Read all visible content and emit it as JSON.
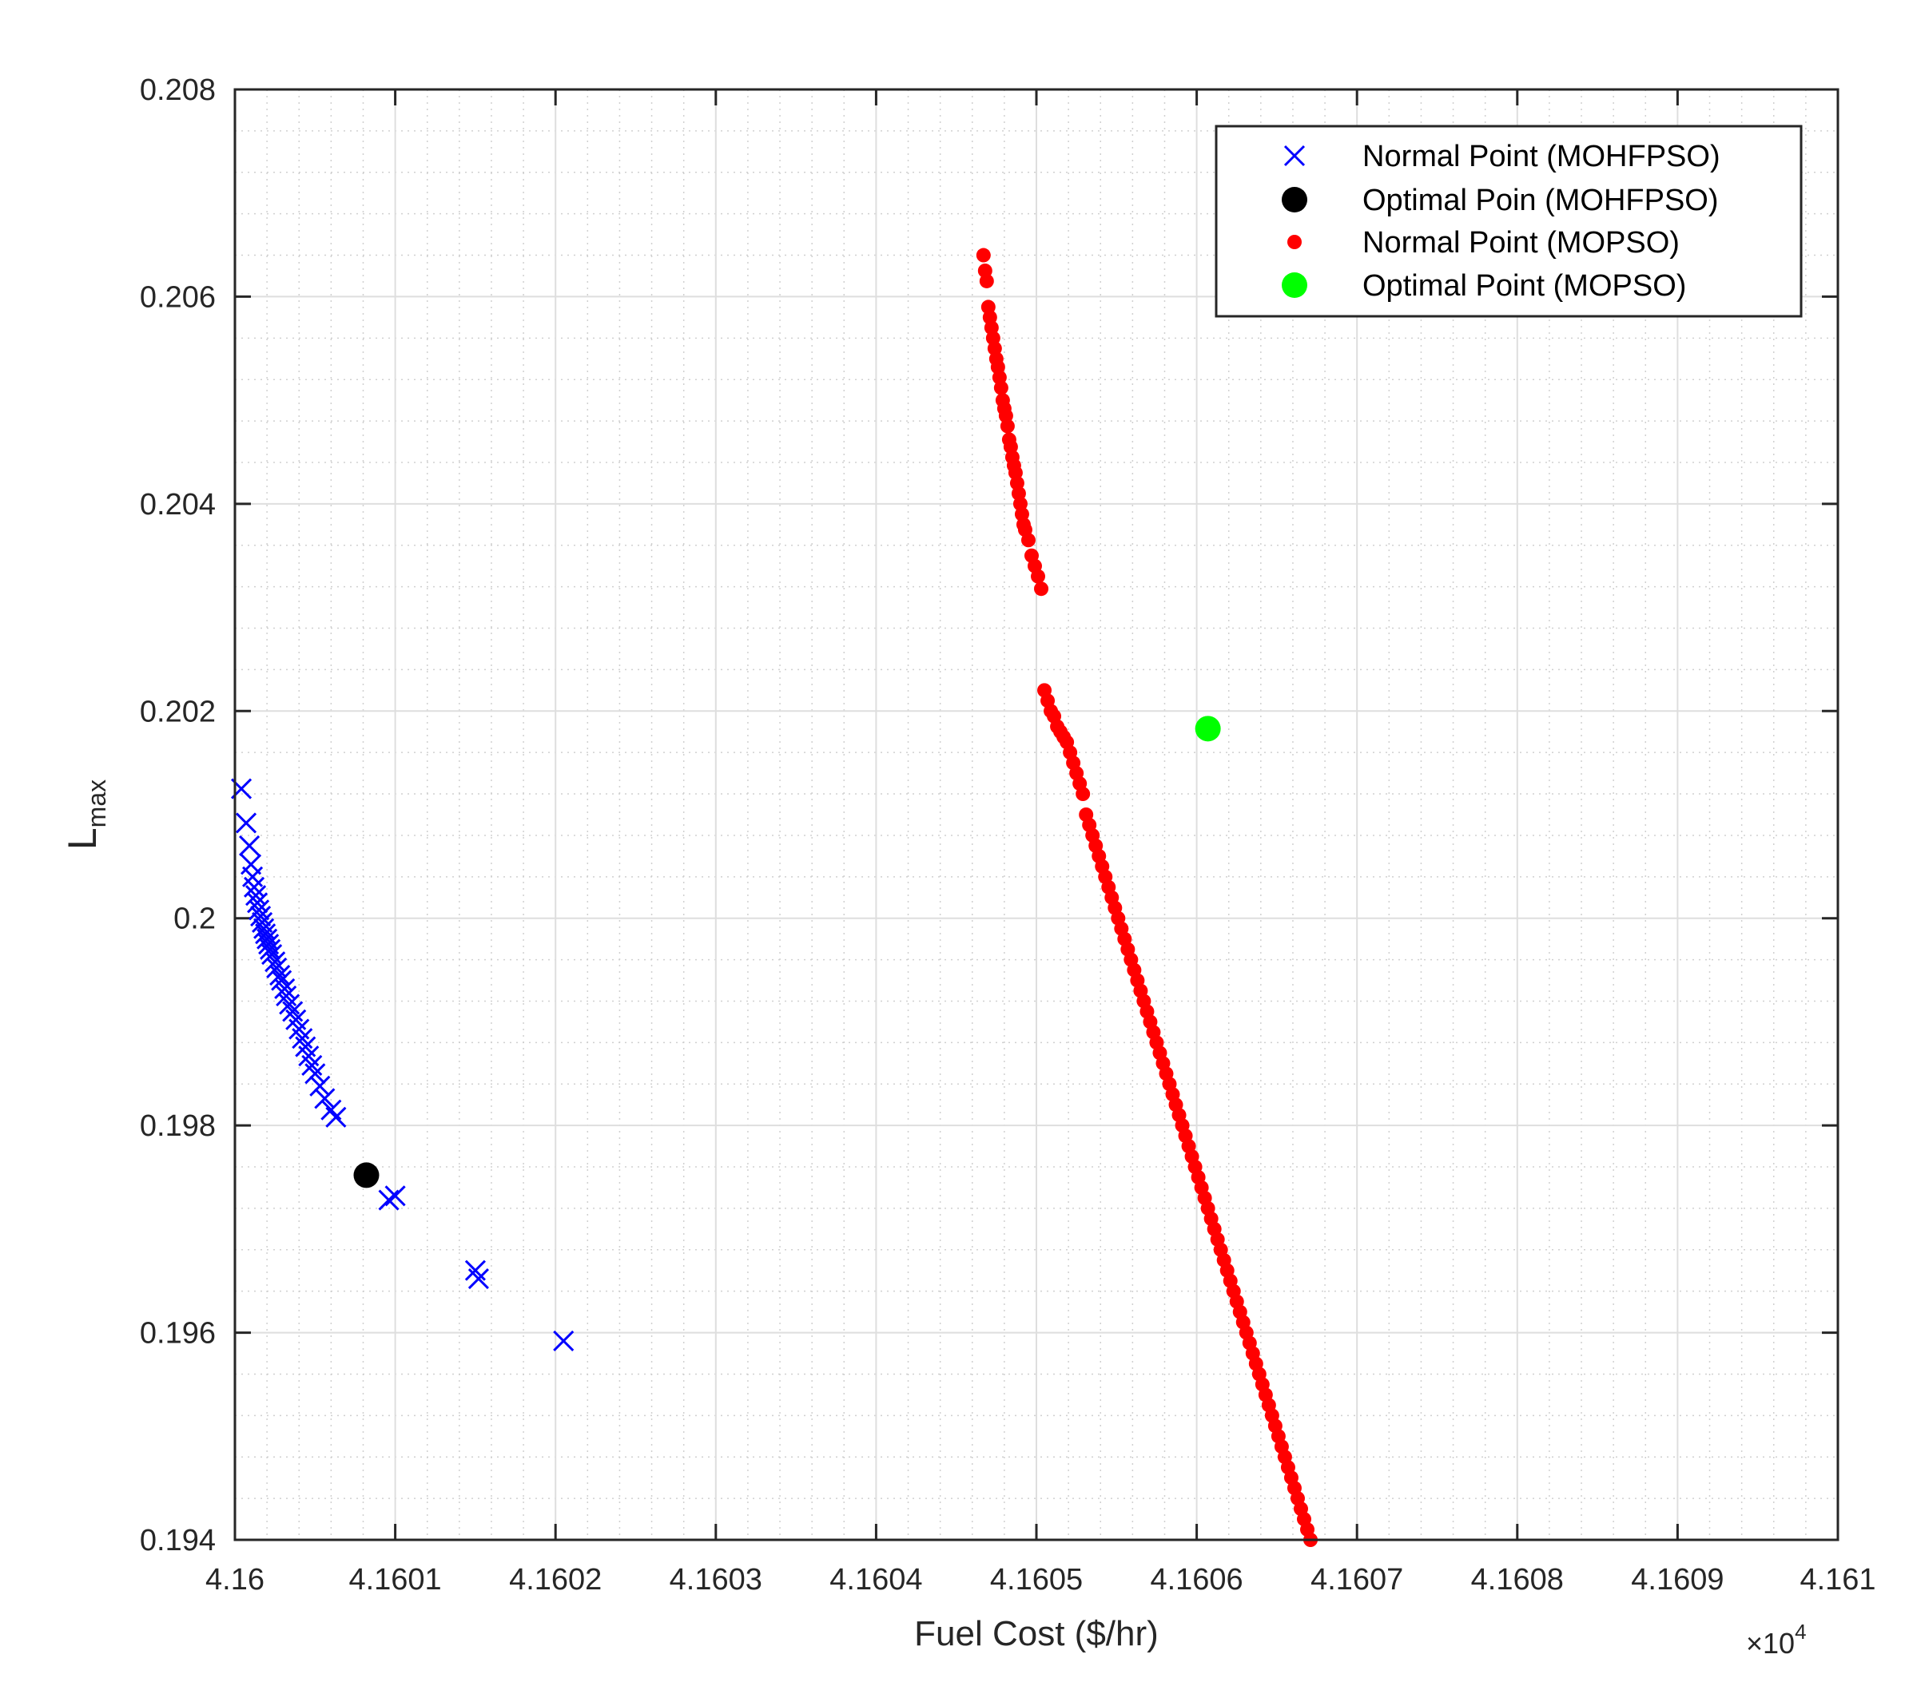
{
  "chart_data": {
    "type": "scatter",
    "title": "",
    "xlabel": "Fuel Cost ($/hr)",
    "ylabel_main": "L",
    "ylabel_sub": "max",
    "x_multiplier_base": "×10",
    "x_multiplier_exp": "4",
    "xlim": [
      4.16,
      4.161
    ],
    "ylim": [
      0.194,
      0.208
    ],
    "xticks": [
      4.16,
      4.1601,
      4.1602,
      4.1603,
      4.1604,
      4.1605,
      4.1606,
      4.1607,
      4.1608,
      4.1609,
      4.161
    ],
    "xtick_labels": [
      "4.16",
      "4.1601",
      "4.1602",
      "4.1603",
      "4.1604",
      "4.1605",
      "4.1606",
      "4.1607",
      "4.1608",
      "4.1609",
      "4.161"
    ],
    "yticks": [
      0.194,
      0.196,
      0.198,
      0.2,
      0.202,
      0.204,
      0.206,
      0.208
    ],
    "ytick_labels": [
      "0.194",
      "0.196",
      "0.198",
      "0.2",
      "0.202",
      "0.204",
      "0.206",
      "0.208"
    ],
    "grid": true,
    "minor_grid": true,
    "legend_position": "top-right",
    "series": [
      {
        "name": "Normal Point (MOHFPSO)",
        "marker": "x",
        "color": "#0000ff",
        "points": [
          [
            4.160004,
            0.20125
          ],
          [
            4.160007,
            0.20092
          ],
          [
            4.160009,
            0.2007
          ],
          [
            4.16001,
            0.20052
          ],
          [
            4.160011,
            0.2004
          ],
          [
            4.160012,
            0.2003
          ],
          [
            4.160013,
            0.20022
          ],
          [
            4.160014,
            0.20015
          ],
          [
            4.160015,
            0.20008
          ],
          [
            4.160016,
            0.20002
          ],
          [
            4.160017,
            0.19996
          ],
          [
            4.160018,
            0.1999
          ],
          [
            4.160019,
            0.19985
          ],
          [
            4.16002,
            0.1998
          ],
          [
            4.160021,
            0.19975
          ],
          [
            4.160022,
            0.1997
          ],
          [
            4.160023,
            0.19965
          ],
          [
            4.160025,
            0.19958
          ],
          [
            4.160026,
            0.19952
          ],
          [
            4.160028,
            0.19945
          ],
          [
            4.160029,
            0.1994
          ],
          [
            4.160031,
            0.19932
          ],
          [
            4.160032,
            0.19925
          ],
          [
            4.160034,
            0.19917
          ],
          [
            4.160036,
            0.1991
          ],
          [
            4.160038,
            0.19902
          ],
          [
            4.16004,
            0.19893
          ],
          [
            4.160042,
            0.19884
          ],
          [
            4.160044,
            0.19876
          ],
          [
            4.160046,
            0.19867
          ],
          [
            4.160048,
            0.19858
          ],
          [
            4.16005,
            0.1985
          ],
          [
            4.160053,
            0.19838
          ],
          [
            4.160056,
            0.19826
          ],
          [
            4.16006,
            0.19815
          ],
          [
            4.160063,
            0.19808
          ],
          [
            4.160096,
            0.19728
          ],
          [
            4.1601,
            0.19732
          ],
          [
            4.16015,
            0.1966
          ],
          [
            4.160152,
            0.19652
          ],
          [
            4.160205,
            0.19592
          ]
        ]
      },
      {
        "name": "Optimal Poin (MOHFPSO)",
        "marker": "circle-large",
        "color": "#000000",
        "points": [
          [
            4.160082,
            0.19752
          ]
        ]
      },
      {
        "name": "Normal Point (MOPSO)",
        "marker": "dot",
        "color": "#ff0000",
        "points": [
          [
            4.160467,
            0.2064
          ],
          [
            4.160468,
            0.20625
          ],
          [
            4.160469,
            0.20615
          ],
          [
            4.16047,
            0.2059
          ],
          [
            4.160471,
            0.2058
          ],
          [
            4.160472,
            0.2057
          ],
          [
            4.160473,
            0.2056
          ],
          [
            4.160474,
            0.2055
          ],
          [
            4.160475,
            0.2054
          ],
          [
            4.160476,
            0.20532
          ],
          [
            4.160477,
            0.20522
          ],
          [
            4.160478,
            0.20512
          ],
          [
            4.160479,
            0.205
          ],
          [
            4.16048,
            0.20492
          ],
          [
            4.160481,
            0.20485
          ],
          [
            4.160482,
            0.20475
          ],
          [
            4.160483,
            0.20462
          ],
          [
            4.160484,
            0.20455
          ],
          [
            4.160485,
            0.20445
          ],
          [
            4.160486,
            0.20437
          ],
          [
            4.160487,
            0.2043
          ],
          [
            4.160488,
            0.2042
          ],
          [
            4.160489,
            0.2041
          ],
          [
            4.16049,
            0.204
          ],
          [
            4.160491,
            0.2039
          ],
          [
            4.160492,
            0.2038
          ],
          [
            4.160493,
            0.20375
          ],
          [
            4.160495,
            0.20365
          ],
          [
            4.160497,
            0.2035
          ],
          [
            4.160499,
            0.2034
          ],
          [
            4.160501,
            0.2033
          ],
          [
            4.160503,
            0.20318
          ],
          [
            4.160505,
            0.2022
          ],
          [
            4.160507,
            0.2021
          ],
          [
            4.160509,
            0.202
          ],
          [
            4.160511,
            0.20195
          ],
          [
            4.160513,
            0.20185
          ],
          [
            4.160515,
            0.2018
          ],
          [
            4.160517,
            0.20175
          ],
          [
            4.160519,
            0.2017
          ],
          [
            4.160521,
            0.2016
          ],
          [
            4.160523,
            0.2015
          ],
          [
            4.160525,
            0.2014
          ],
          [
            4.160527,
            0.2013
          ],
          [
            4.160529,
            0.2012
          ],
          [
            4.160531,
            0.201
          ],
          [
            4.160533,
            0.2009
          ],
          [
            4.160535,
            0.2008
          ],
          [
            4.160537,
            0.2007
          ],
          [
            4.160539,
            0.2006
          ],
          [
            4.160541,
            0.2005
          ],
          [
            4.160543,
            0.2004
          ],
          [
            4.160545,
            0.2003
          ],
          [
            4.160547,
            0.2002
          ],
          [
            4.160549,
            0.2001
          ],
          [
            4.160551,
            0.2
          ],
          [
            4.160553,
            0.1999
          ],
          [
            4.160555,
            0.1998
          ],
          [
            4.160557,
            0.1997
          ],
          [
            4.160559,
            0.1996
          ],
          [
            4.160561,
            0.1995
          ],
          [
            4.160563,
            0.1994
          ],
          [
            4.160565,
            0.1993
          ],
          [
            4.160567,
            0.1992
          ],
          [
            4.160569,
            0.1991
          ],
          [
            4.160571,
            0.199
          ],
          [
            4.160573,
            0.1989
          ],
          [
            4.160575,
            0.1988
          ],
          [
            4.160577,
            0.1987
          ],
          [
            4.160579,
            0.1986
          ],
          [
            4.160581,
            0.1985
          ],
          [
            4.160583,
            0.1984
          ],
          [
            4.160585,
            0.1983
          ],
          [
            4.160587,
            0.1982
          ],
          [
            4.160589,
            0.1981
          ],
          [
            4.160591,
            0.198
          ],
          [
            4.160593,
            0.1979
          ],
          [
            4.160595,
            0.1978
          ],
          [
            4.160597,
            0.1977
          ],
          [
            4.160599,
            0.1976
          ],
          [
            4.160601,
            0.1975
          ],
          [
            4.160603,
            0.1974
          ],
          [
            4.160605,
            0.1973
          ],
          [
            4.160607,
            0.1972
          ],
          [
            4.160609,
            0.1971
          ],
          [
            4.160611,
            0.197
          ],
          [
            4.160613,
            0.1969
          ],
          [
            4.160615,
            0.1968
          ],
          [
            4.160617,
            0.1967
          ],
          [
            4.160619,
            0.1966
          ],
          [
            4.160621,
            0.1965
          ],
          [
            4.160623,
            0.1964
          ],
          [
            4.160625,
            0.1963
          ],
          [
            4.160627,
            0.1962
          ],
          [
            4.160629,
            0.1961
          ],
          [
            4.160631,
            0.196
          ],
          [
            4.160633,
            0.1959
          ],
          [
            4.160635,
            0.1958
          ],
          [
            4.160637,
            0.1957
          ],
          [
            4.160639,
            0.1956
          ],
          [
            4.160641,
            0.1955
          ],
          [
            4.160643,
            0.1954
          ],
          [
            4.160645,
            0.1953
          ],
          [
            4.160647,
            0.1952
          ],
          [
            4.160649,
            0.1951
          ],
          [
            4.160651,
            0.195
          ],
          [
            4.160653,
            0.1949
          ],
          [
            4.160655,
            0.1948
          ],
          [
            4.160657,
            0.1947
          ],
          [
            4.160659,
            0.1946
          ],
          [
            4.160661,
            0.1945
          ],
          [
            4.160663,
            0.1944
          ],
          [
            4.160665,
            0.1943
          ],
          [
            4.160667,
            0.1942
          ],
          [
            4.160669,
            0.1941
          ],
          [
            4.160671,
            0.194
          ]
        ]
      },
      {
        "name": "Optimal Point (MOPSO)",
        "marker": "circle-large",
        "color": "#00ff00",
        "points": [
          [
            4.160607,
            0.20183
          ]
        ]
      }
    ]
  }
}
